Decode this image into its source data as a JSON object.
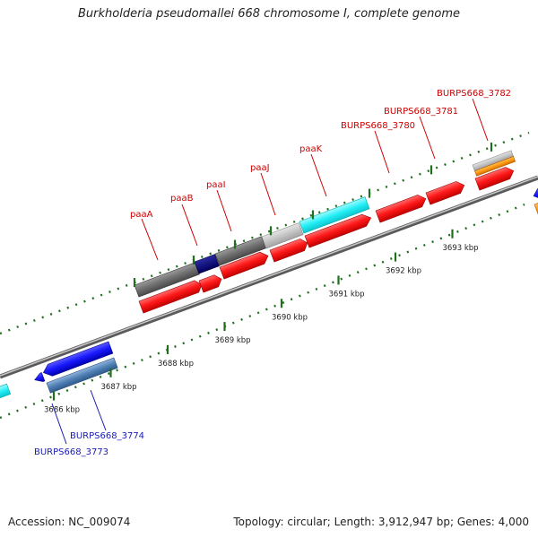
{
  "title": "Burkholderia pseudomallei 668 chromosome I, complete genome",
  "footer": {
    "accession": "Accession: NC_009074",
    "topology": "Topology: circular; Length: 3,912,947 bp; Genes: 4,000"
  },
  "colors": {
    "backbone": "#7f7f7f",
    "tick": "#1f6f1f",
    "label_red": "#cc0000",
    "label_blue": "#1a1ab3"
  },
  "scale": {
    "unit": "kbp",
    "ticks": [
      {
        "kbp": 3686,
        "label": "3686 kbp"
      },
      {
        "kbp": 3687,
        "label": "3687 kbp"
      },
      {
        "kbp": 3688,
        "label": "3688 kbp"
      },
      {
        "kbp": 3689,
        "label": "3689 kbp"
      },
      {
        "kbp": 3690,
        "label": "3690 kbp"
      },
      {
        "kbp": 3691,
        "label": "3691 kbp"
      },
      {
        "kbp": 3692,
        "label": "3692 kbp"
      },
      {
        "kbp": 3693,
        "label": "3693 kbp"
      }
    ]
  },
  "gene_labels": [
    {
      "text": "paaA",
      "color": "red"
    },
    {
      "text": "paaB",
      "color": "red"
    },
    {
      "text": "paaI",
      "color": "red"
    },
    {
      "text": "paaJ",
      "color": "red"
    },
    {
      "text": "paaK",
      "color": "red"
    },
    {
      "text": "BURPS668_3780",
      "color": "red"
    },
    {
      "text": "BURPS668_3781",
      "color": "red"
    },
    {
      "text": "BURPS668_3782",
      "color": "red"
    },
    {
      "text": "BURPS668_3774",
      "color": "blue"
    },
    {
      "text": "BURPS668_3773",
      "color": "blue"
    }
  ]
}
